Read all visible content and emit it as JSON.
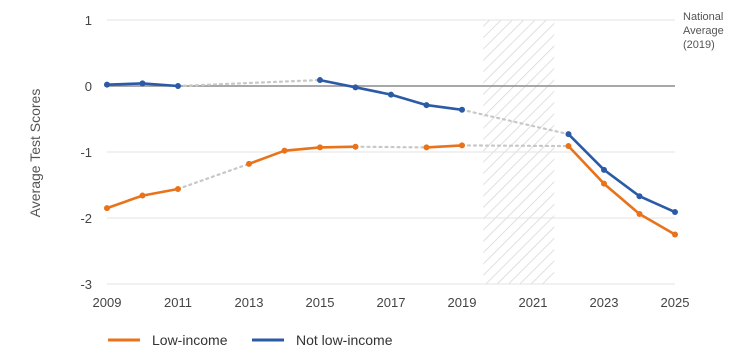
{
  "chart_data": {
    "type": "line",
    "ylabel": "Average Test Scores",
    "xlabel": "",
    "xlim": [
      2009,
      2025
    ],
    "ylim": [
      -3,
      1
    ],
    "x_ticks": [
      "2009",
      "2011",
      "2013",
      "2015",
      "2017",
      "2019",
      "2021",
      "2023",
      "2025"
    ],
    "y_ticks": [
      "1",
      "0",
      "-1",
      "-2",
      "-3"
    ],
    "grid": true,
    "legend_position": "bottom-left",
    "shaded_range": [
      2019.6,
      2021.6
    ],
    "reference_line": {
      "y": 0,
      "label_lines": [
        "National",
        "Average",
        "(2019)"
      ]
    },
    "series": [
      {
        "name": "Low-income",
        "color": "#e8731a",
        "segments": [
          [
            [
              2009,
              -1.85
            ],
            [
              2010,
              -1.66
            ],
            [
              2011,
              -1.56
            ]
          ],
          [
            [
              2013,
              -1.18
            ],
            [
              2014,
              -0.98
            ],
            [
              2015,
              -0.93
            ],
            [
              2016,
              -0.92
            ]
          ],
          [
            [
              2018,
              -0.93
            ],
            [
              2019,
              -0.9
            ]
          ],
          [
            [
              2022,
              -0.91
            ],
            [
              2023,
              -1.48
            ],
            [
              2024,
              -1.94
            ],
            [
              2025,
              -2.25
            ]
          ]
        ],
        "gaps": [
          [
            [
              2011,
              -1.56
            ],
            [
              2013,
              -1.18
            ]
          ],
          [
            [
              2016,
              -0.92
            ],
            [
              2018,
              -0.93
            ]
          ],
          [
            [
              2019,
              -0.9
            ],
            [
              2022,
              -0.91
            ]
          ]
        ]
      },
      {
        "name": "Not low-income",
        "color": "#2b5aa6",
        "segments": [
          [
            [
              2009,
              0.02
            ],
            [
              2010,
              0.04
            ],
            [
              2011,
              0.0
            ]
          ],
          [
            [
              2015,
              0.09
            ],
            [
              2016,
              -0.02
            ],
            [
              2017,
              -0.13
            ],
            [
              2018,
              -0.29
            ],
            [
              2019,
              -0.36
            ]
          ],
          [
            [
              2022,
              -0.73
            ],
            [
              2023,
              -1.27
            ],
            [
              2024,
              -1.67
            ],
            [
              2025,
              -1.91
            ]
          ]
        ],
        "gaps": [
          [
            [
              2011,
              0.0
            ],
            [
              2015,
              0.09
            ]
          ],
          [
            [
              2019,
              -0.36
            ],
            [
              2022,
              -0.73
            ]
          ]
        ]
      }
    ]
  }
}
